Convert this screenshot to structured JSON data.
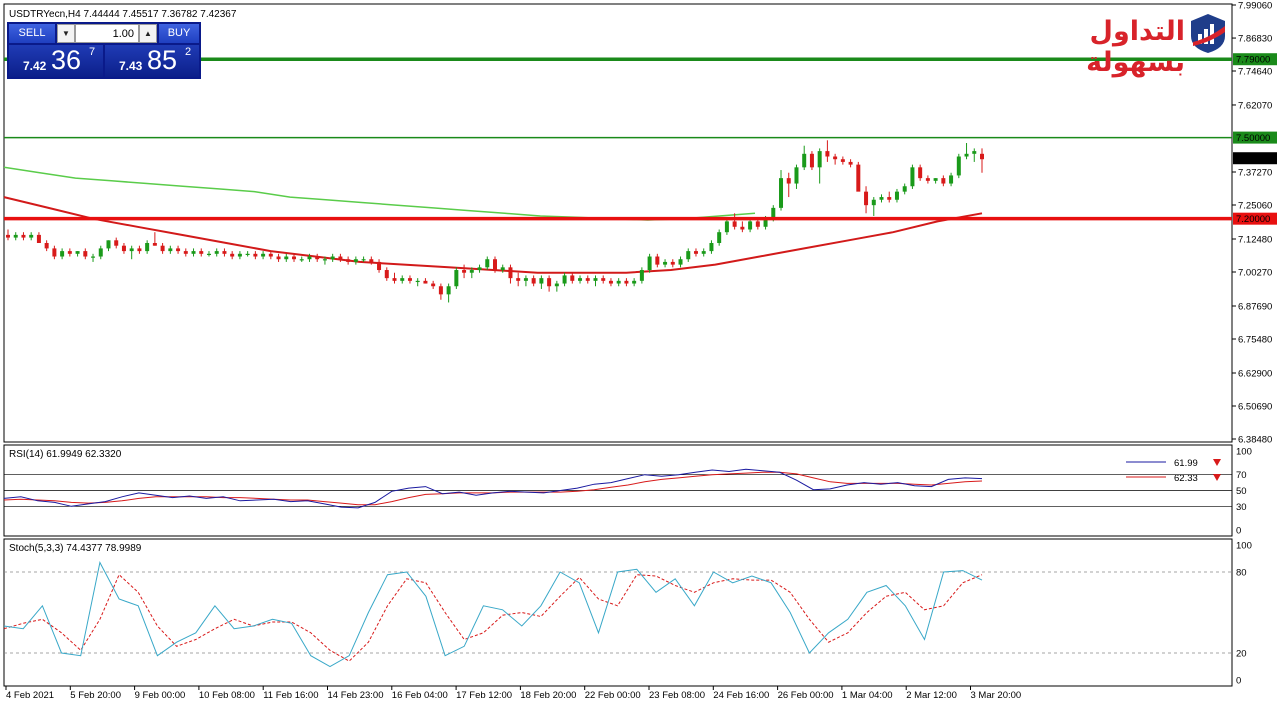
{
  "header": {
    "symbol_info": "USDTRYecn,H4  7.44444 7.45517 7.36782 7.42367",
    "rsi_label": "RSI(14) 61.9949 62.3320",
    "stoch_label": "Stoch(5,3,3) 74.4377 78.9989"
  },
  "logo": {
    "text": "التداول بسهولة",
    "icon": "bar-chart-shield-icon"
  },
  "trade_panel": {
    "sell_label": "SELL",
    "buy_label": "BUY",
    "lot_value": "1.00",
    "sell_price": {
      "small": "7.42",
      "big": "36",
      "sup": "7"
    },
    "buy_price": {
      "small": "7.43",
      "big": "85",
      "sup": "2"
    }
  },
  "rsi_legend": [
    {
      "value": "61.99",
      "color": "#1a1aa0"
    },
    {
      "value": "62.33",
      "color": "#d81a1a"
    }
  ],
  "colors": {
    "bull": "#1a9a1a",
    "bear": "#d81a1a",
    "ma_fast": "#5acc4a",
    "ma_slow": "#d21a1a",
    "rsi": "#1a1aa0",
    "rsi_signal": "#d81a1a",
    "stoch_main": "#39a8c8",
    "stoch_signal": "#d81a1a",
    "level_green": "#1a8a1a",
    "level_red": "#e81010"
  },
  "chart_data": [
    {
      "type": "candlestick",
      "title": "USDTRYecn,H4",
      "ylim": [
        6.3848,
        7.9906
      ],
      "y_ticks": [
        "7.99060",
        "7.86830",
        "7.74640",
        "7.62070",
        "7.37270",
        "7.25060",
        "7.12480",
        "7.00270",
        "6.87690",
        "6.75480",
        "6.62900",
        "6.50690",
        "6.38480"
      ],
      "x_ticks": [
        "4 Feb 2021",
        "5 Feb 20:00",
        "9 Feb 00:00",
        "10 Feb 08:00",
        "11 Feb 16:00",
        "14 Feb 23:00",
        "16 Feb 04:00",
        "17 Feb 12:00",
        "18 Feb 20:00",
        "22 Feb 00:00",
        "23 Feb 08:00",
        "24 Feb 16:00",
        "26 Feb 00:00",
        "1 Mar 04:00",
        "2 Mar 12:00",
        "3 Mar 20:00"
      ],
      "levels": [
        {
          "value": 7.79,
          "label": "7.79000",
          "color": "#1a8a1a",
          "width": "thick"
        },
        {
          "value": 7.5,
          "label": "7.50000",
          "color": "#1a8a1a",
          "width": "thin"
        },
        {
          "value": 7.2,
          "label": "7.20000",
          "color": "#e81010",
          "width": "thick"
        }
      ],
      "current_price": {
        "value": 7.42367,
        "label": "7.42367"
      },
      "candles_ohlc": [
        [
          7.14,
          7.16,
          7.12,
          7.13
        ],
        [
          7.13,
          7.15,
          7.12,
          7.14
        ],
        [
          7.14,
          7.15,
          7.12,
          7.13
        ],
        [
          7.13,
          7.15,
          7.12,
          7.14
        ],
        [
          7.14,
          7.15,
          7.11,
          7.11
        ],
        [
          7.11,
          7.12,
          7.08,
          7.09
        ],
        [
          7.09,
          7.1,
          7.05,
          7.06
        ],
        [
          7.06,
          7.09,
          7.05,
          7.08
        ],
        [
          7.08,
          7.09,
          7.06,
          7.07
        ],
        [
          7.07,
          7.08,
          7.06,
          7.08
        ],
        [
          7.08,
          7.09,
          7.05,
          7.06
        ],
        [
          7.06,
          7.07,
          7.04,
          7.06
        ],
        [
          7.06,
          7.1,
          7.05,
          7.09
        ],
        [
          7.09,
          7.12,
          7.08,
          7.12
        ],
        [
          7.12,
          7.13,
          7.09,
          7.1
        ],
        [
          7.1,
          7.11,
          7.07,
          7.08
        ],
        [
          7.08,
          7.1,
          7.05,
          7.09
        ],
        [
          7.09,
          7.1,
          7.07,
          7.08
        ],
        [
          7.08,
          7.12,
          7.07,
          7.11
        ],
        [
          7.11,
          7.15,
          7.1,
          7.1
        ],
        [
          7.1,
          7.11,
          7.07,
          7.08
        ],
        [
          7.08,
          7.1,
          7.07,
          7.09
        ],
        [
          7.09,
          7.1,
          7.07,
          7.08
        ],
        [
          7.08,
          7.09,
          7.06,
          7.07
        ],
        [
          7.07,
          7.09,
          7.06,
          7.08
        ],
        [
          7.08,
          7.09,
          7.06,
          7.07
        ],
        [
          7.07,
          7.08,
          7.06,
          7.07
        ],
        [
          7.07,
          7.09,
          7.06,
          7.08
        ],
        [
          7.08,
          7.09,
          7.06,
          7.07
        ],
        [
          7.07,
          7.08,
          7.05,
          7.06
        ],
        [
          7.06,
          7.08,
          7.05,
          7.07
        ],
        [
          7.07,
          7.08,
          7.06,
          7.07
        ],
        [
          7.07,
          7.08,
          7.05,
          7.06
        ],
        [
          7.06,
          7.08,
          7.05,
          7.07
        ],
        [
          7.07,
          7.08,
          7.05,
          7.06
        ],
        [
          7.06,
          7.07,
          7.04,
          7.05
        ],
        [
          7.05,
          7.07,
          7.04,
          7.06
        ],
        [
          7.06,
          7.07,
          7.04,
          7.05
        ],
        [
          7.05,
          7.06,
          7.04,
          7.05
        ],
        [
          7.05,
          7.07,
          7.04,
          7.06
        ],
        [
          7.06,
          7.07,
          7.04,
          7.05
        ],
        [
          7.05,
          7.06,
          7.03,
          7.05
        ],
        [
          7.05,
          7.07,
          7.04,
          7.06
        ],
        [
          7.06,
          7.07,
          7.04,
          7.05
        ],
        [
          7.05,
          7.06,
          7.03,
          7.04
        ],
        [
          7.04,
          7.06,
          7.03,
          7.05
        ],
        [
          7.05,
          7.06,
          7.04,
          7.05
        ],
        [
          7.05,
          7.06,
          7.03,
          7.04
        ],
        [
          7.04,
          7.05,
          7.0,
          7.01
        ],
        [
          7.01,
          7.02,
          6.97,
          6.98
        ],
        [
          6.98,
          7.0,
          6.96,
          6.97
        ],
        [
          6.97,
          6.99,
          6.96,
          6.98
        ],
        [
          6.98,
          6.99,
          6.96,
          6.97
        ],
        [
          6.97,
          6.98,
          6.95,
          6.97
        ],
        [
          6.97,
          6.98,
          6.96,
          6.96
        ],
        [
          6.96,
          6.97,
          6.94,
          6.95
        ],
        [
          6.95,
          6.96,
          6.9,
          6.92
        ],
        [
          6.92,
          6.96,
          6.89,
          6.95
        ],
        [
          6.95,
          7.02,
          6.94,
          7.01
        ],
        [
          7.01,
          7.03,
          6.98,
          7.0
        ],
        [
          7.0,
          7.02,
          6.98,
          7.01
        ],
        [
          7.01,
          7.03,
          7.0,
          7.02
        ],
        [
          7.02,
          7.06,
          7.01,
          7.05
        ],
        [
          7.05,
          7.06,
          7.0,
          7.01
        ],
        [
          7.01,
          7.03,
          7.0,
          7.02
        ],
        [
          7.02,
          7.03,
          6.96,
          6.98
        ],
        [
          6.98,
          7.0,
          6.95,
          6.97
        ],
        [
          6.97,
          6.99,
          6.95,
          6.98
        ],
        [
          6.98,
          6.99,
          6.95,
          6.96
        ],
        [
          6.96,
          6.99,
          6.94,
          6.98
        ],
        [
          6.98,
          6.99,
          6.93,
          6.95
        ],
        [
          6.95,
          6.97,
          6.93,
          6.96
        ],
        [
          6.96,
          7.0,
          6.95,
          6.99
        ],
        [
          6.99,
          7.0,
          6.96,
          6.97
        ],
        [
          6.97,
          6.99,
          6.96,
          6.98
        ],
        [
          6.98,
          6.99,
          6.96,
          6.97
        ],
        [
          6.97,
          6.99,
          6.95,
          6.98
        ],
        [
          6.98,
          6.99,
          6.96,
          6.97
        ],
        [
          6.97,
          6.98,
          6.95,
          6.96
        ],
        [
          6.96,
          6.98,
          6.95,
          6.97
        ],
        [
          6.97,
          6.98,
          6.95,
          6.96
        ],
        [
          6.96,
          6.98,
          6.95,
          6.97
        ],
        [
          6.97,
          7.02,
          6.96,
          7.01
        ],
        [
          7.01,
          7.07,
          7.0,
          7.06
        ],
        [
          7.06,
          7.07,
          7.02,
          7.03
        ],
        [
          7.03,
          7.05,
          7.02,
          7.04
        ],
        [
          7.04,
          7.05,
          7.02,
          7.03
        ],
        [
          7.03,
          7.06,
          7.02,
          7.05
        ],
        [
          7.05,
          7.09,
          7.04,
          7.08
        ],
        [
          7.08,
          7.09,
          7.06,
          7.07
        ],
        [
          7.07,
          7.09,
          7.06,
          7.08
        ],
        [
          7.08,
          7.12,
          7.07,
          7.11
        ],
        [
          7.11,
          7.16,
          7.1,
          7.15
        ],
        [
          7.15,
          7.2,
          7.14,
          7.19
        ],
        [
          7.19,
          7.22,
          7.16,
          7.17
        ],
        [
          7.17,
          7.19,
          7.15,
          7.16
        ],
        [
          7.16,
          7.2,
          7.15,
          7.19
        ],
        [
          7.19,
          7.2,
          7.16,
          7.17
        ],
        [
          7.17,
          7.21,
          7.16,
          7.2
        ],
        [
          7.2,
          7.25,
          7.19,
          7.24
        ],
        [
          7.24,
          7.38,
          7.23,
          7.35
        ],
        [
          7.35,
          7.37,
          7.28,
          7.33
        ],
        [
          7.33,
          7.4,
          7.31,
          7.39
        ],
        [
          7.39,
          7.47,
          7.38,
          7.44
        ],
        [
          7.44,
          7.45,
          7.38,
          7.39
        ],
        [
          7.39,
          7.46,
          7.33,
          7.45
        ],
        [
          7.45,
          7.49,
          7.41,
          7.43
        ],
        [
          7.43,
          7.44,
          7.4,
          7.42
        ],
        [
          7.42,
          7.43,
          7.4,
          7.41
        ],
        [
          7.41,
          7.42,
          7.39,
          7.4
        ],
        [
          7.4,
          7.41,
          7.34,
          7.3
        ],
        [
          7.3,
          7.32,
          7.22,
          7.25
        ],
        [
          7.25,
          7.28,
          7.21,
          7.27
        ],
        [
          7.27,
          7.29,
          7.26,
          7.28
        ],
        [
          7.28,
          7.3,
          7.26,
          7.27
        ],
        [
          7.27,
          7.31,
          7.26,
          7.3
        ],
        [
          7.3,
          7.33,
          7.29,
          7.32
        ],
        [
          7.32,
          7.4,
          7.31,
          7.39
        ],
        [
          7.39,
          7.4,
          7.34,
          7.35
        ],
        [
          7.35,
          7.36,
          7.33,
          7.34
        ],
        [
          7.34,
          7.35,
          7.33,
          7.35
        ],
        [
          7.35,
          7.36,
          7.32,
          7.33
        ],
        [
          7.33,
          7.37,
          7.32,
          7.36
        ],
        [
          7.36,
          7.44,
          7.35,
          7.43
        ],
        [
          7.43,
          7.48,
          7.42,
          7.44
        ],
        [
          7.44,
          7.46,
          7.41,
          7.45
        ],
        [
          7.44,
          7.46,
          7.37,
          7.42
        ]
      ],
      "series": [
        {
          "name": "",
          "values": [
            7.39,
            7.37,
            7.35,
            7.34,
            7.33,
            7.32,
            7.31,
            7.3,
            7.28,
            7.27,
            7.26,
            7.25,
            7.24,
            7.23,
            7.22,
            7.21,
            7.205,
            7.2,
            7.195,
            7.2,
            7.21,
            7.22
          ]
        },
        {
          "name": "",
          "values": [
            7.28,
            7.24,
            7.2,
            7.17,
            7.14,
            7.11,
            7.08,
            7.06,
            7.04,
            7.03,
            7.02,
            7.01,
            7.0,
            7.0,
            7.0,
            7.01,
            7.03,
            7.06,
            7.09,
            7.12,
            7.15,
            7.19,
            7.22
          ]
        }
      ]
    },
    {
      "type": "line",
      "title": "RSI(14)",
      "ylim": [
        0,
        100
      ],
      "y_ticks": [
        "100",
        "70",
        "50",
        "30",
        "0"
      ],
      "levels": [
        70,
        50,
        30
      ],
      "series": [
        {
          "name": "",
          "values": [
            40,
            42,
            37,
            35,
            30,
            33,
            36,
            42,
            47,
            44,
            41,
            43,
            40,
            42,
            37,
            38,
            39,
            36,
            37,
            33,
            29,
            28,
            35,
            49,
            53,
            55,
            46,
            48,
            44,
            47,
            49,
            48,
            47,
            50,
            53,
            58,
            60,
            65,
            70,
            68,
            70,
            73,
            76,
            74,
            77,
            75,
            73,
            63,
            51,
            52,
            57,
            60,
            58,
            60,
            56,
            55,
            64,
            66,
            65
          ]
        },
        {
          "name": "",
          "values": [
            38,
            39,
            38,
            37,
            35,
            34,
            35,
            37,
            40,
            42,
            42,
            42,
            42,
            41,
            41,
            40,
            39,
            38,
            38,
            36,
            34,
            32,
            32,
            36,
            41,
            45,
            46,
            47,
            47,
            47,
            48,
            48,
            48,
            48,
            49,
            51,
            54,
            57,
            61,
            64,
            66,
            68,
            70,
            71,
            72,
            73,
            73,
            71,
            66,
            61,
            59,
            59,
            59,
            59,
            58,
            57,
            59,
            61,
            62
          ]
        }
      ]
    },
    {
      "type": "line",
      "title": "Stoch(5,3,3)",
      "ylim": [
        0,
        100
      ],
      "y_ticks": [
        "100",
        "80",
        "20",
        "0"
      ],
      "levels": [
        80,
        20
      ],
      "series": [
        {
          "name": "",
          "values": [
            40,
            38,
            55,
            20,
            18,
            87,
            60,
            55,
            18,
            28,
            35,
            55,
            38,
            40,
            45,
            42,
            18,
            10,
            18,
            50,
            78,
            80,
            62,
            18,
            25,
            55,
            52,
            40,
            55,
            80,
            72,
            35,
            80,
            82,
            65,
            75,
            55,
            80,
            72,
            77,
            72,
            50,
            20,
            35,
            45,
            65,
            70,
            55,
            30,
            80,
            81,
            74
          ]
        },
        {
          "name": "",
          "values": [
            38,
            42,
            45,
            35,
            22,
            45,
            78,
            65,
            40,
            25,
            30,
            38,
            45,
            40,
            43,
            43,
            35,
            22,
            14,
            28,
            55,
            75,
            72,
            50,
            30,
            35,
            48,
            50,
            47,
            62,
            76,
            60,
            55,
            78,
            77,
            70,
            65,
            72,
            75,
            74,
            74,
            65,
            45,
            28,
            35,
            50,
            62,
            65,
            52,
            55,
            72,
            78
          ]
        }
      ]
    }
  ]
}
